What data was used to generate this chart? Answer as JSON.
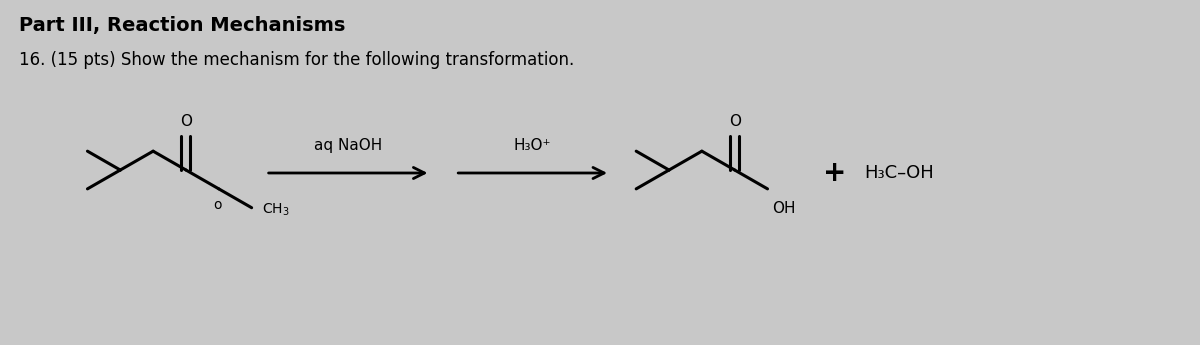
{
  "title_line1": "Part III, Reaction Mechanisms",
  "title_line2": "16. (15 pts) Show the mechanism for the following transformation.",
  "reagent1": "aq NaOH",
  "reagent2": "H₃O⁺",
  "product2": "H₃C–OH",
  "plus_sign": "+",
  "bg_color": "#c8c8c8",
  "text_color": "#000000",
  "title1_fontsize": 14,
  "title2_fontsize": 12,
  "structure_color": "#000000",
  "bond_lw": 2.2
}
